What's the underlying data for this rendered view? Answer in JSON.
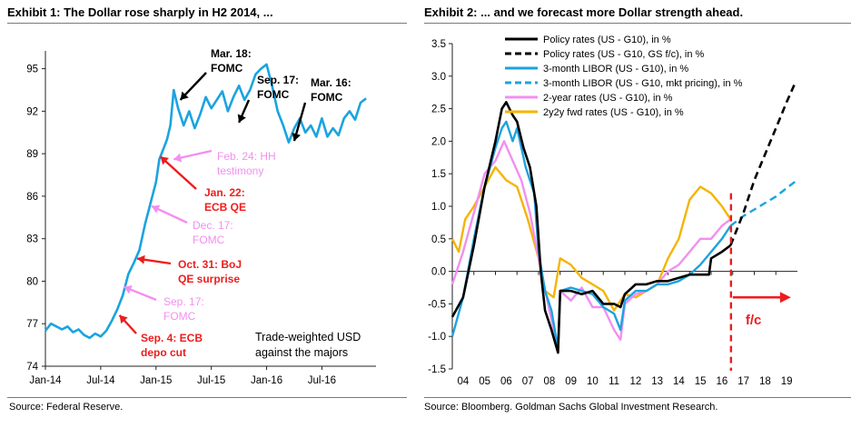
{
  "chart_data": [
    {
      "id": "exhibit1",
      "type": "line",
      "title": "Exhibit 1: The Dollar rose sharply in H2 2014, ...",
      "source": "Source: Federal Reserve.",
      "series_label": [
        "Trade-weighted USD",
        "against the majors"
      ],
      "series_color": "#1ba3e0",
      "ylim": [
        74,
        96
      ],
      "yticks": [
        74,
        77,
        80,
        83,
        86,
        89,
        92,
        95
      ],
      "x_range": [
        2014.0,
        2016.94
      ],
      "xticks": [
        {
          "x": 2014.0,
          "label": "Jan-14"
        },
        {
          "x": 2014.5,
          "label": "Jul-14"
        },
        {
          "x": 2015.0,
          "label": "Jan-15"
        },
        {
          "x": 2015.5,
          "label": "Jul-15"
        },
        {
          "x": 2016.0,
          "label": "Jan-16"
        },
        {
          "x": 2016.5,
          "label": "Jul-16"
        }
      ],
      "x": [
        2014.0,
        2014.05,
        2014.1,
        2014.15,
        2014.2,
        2014.25,
        2014.3,
        2014.35,
        2014.4,
        2014.45,
        2014.5,
        2014.55,
        2014.6,
        2014.65,
        2014.7,
        2014.75,
        2014.8,
        2014.85,
        2014.9,
        2014.95,
        2015.0,
        2015.03,
        2015.06,
        2015.1,
        2015.13,
        2015.16,
        2015.2,
        2015.25,
        2015.3,
        2015.35,
        2015.4,
        2015.45,
        2015.5,
        2015.55,
        2015.6,
        2015.65,
        2015.7,
        2015.75,
        2015.8,
        2015.85,
        2015.9,
        2015.95,
        2016.0,
        2016.05,
        2016.1,
        2016.15,
        2016.2,
        2016.25,
        2016.3,
        2016.35,
        2016.4,
        2016.45,
        2016.5,
        2016.55,
        2016.6,
        2016.65,
        2016.7,
        2016.75,
        2016.8,
        2016.85,
        2016.9
      ],
      "values": [
        76.5,
        77.0,
        76.8,
        76.6,
        76.8,
        76.4,
        76.6,
        76.2,
        76.0,
        76.3,
        76.1,
        76.5,
        77.2,
        78.0,
        79.0,
        80.5,
        81.3,
        82.2,
        84.0,
        85.5,
        87.0,
        88.6,
        89.2,
        90.0,
        91.0,
        93.5,
        92.2,
        91.0,
        92.0,
        90.8,
        91.8,
        93.0,
        92.2,
        92.8,
        93.4,
        92.0,
        93.0,
        93.8,
        92.8,
        93.5,
        94.6,
        95.0,
        95.3,
        93.8,
        92.0,
        91.0,
        89.8,
        90.8,
        91.5,
        90.5,
        91.0,
        90.2,
        91.5,
        90.2,
        90.8,
        90.3,
        91.5,
        92.0,
        91.4,
        92.6,
        92.9
      ],
      "annotations": [
        {
          "lines": [
            "Mar. 18:",
            "FOMC"
          ],
          "color": "#000000",
          "target": [
            2015.22,
            92.8
          ]
        },
        {
          "lines": [
            "Sep. 17:",
            "FOMC"
          ],
          "color": "#000000",
          "target": [
            2015.75,
            91.2
          ]
        },
        {
          "lines": [
            "Mar. 16:",
            "FOMC"
          ],
          "color": "#000000",
          "target": [
            2016.25,
            89.9
          ]
        },
        {
          "lines": [
            "Feb. 24: HH",
            "testimony"
          ],
          "color": "#f28ff0",
          "target": [
            2015.16,
            88.6
          ]
        },
        {
          "lines": [
            "Jan. 22:",
            "ECB QE"
          ],
          "color": "#ee1c1c",
          "target": [
            2015.04,
            88.8
          ]
        },
        {
          "lines": [
            "Dec. 17:",
            "FOMC"
          ],
          "color": "#f28ff0",
          "target": [
            2014.96,
            85.3
          ]
        },
        {
          "lines": [
            "Oct. 31: BoJ",
            "QE surprise"
          ],
          "color": "#ee1c1c",
          "target": [
            2014.83,
            81.6
          ]
        },
        {
          "lines": [
            "Sep. 17:",
            "FOMC"
          ],
          "color": "#f28ff0",
          "target": [
            2014.71,
            79.6
          ]
        },
        {
          "lines": [
            "Sep. 4: ECB",
            "depo cut"
          ],
          "color": "#ee1c1c",
          "target": [
            2014.67,
            77.6
          ]
        }
      ]
    },
    {
      "id": "exhibit2",
      "type": "line",
      "title": "Exhibit 2: ... and we forecast more Dollar strength ahead.",
      "source": "Source: Bloomberg. Goldman Sachs Global Investment Research.",
      "ylim": [
        -1.5,
        3.5
      ],
      "yticks": [
        -1.5,
        -1.0,
        -0.5,
        0.0,
        0.5,
        1.0,
        1.5,
        2.0,
        2.5,
        3.0,
        3.5
      ],
      "ytick_labels": [
        "-1.5",
        "-1.0",
        "-0.5",
        "0.0",
        "0.5",
        "1.0",
        "1.5",
        "2.0",
        "2.5",
        "3.0",
        "3.5"
      ],
      "x_range": [
        2004,
        2020
      ],
      "xticks": [
        {
          "x": 2004,
          "label": "04"
        },
        {
          "x": 2005,
          "label": "05"
        },
        {
          "x": 2006,
          "label": "06"
        },
        {
          "x": 2007,
          "label": "07"
        },
        {
          "x": 2008,
          "label": "08"
        },
        {
          "x": 2009,
          "label": "09"
        },
        {
          "x": 2010,
          "label": "10"
        },
        {
          "x": 2011,
          "label": "11"
        },
        {
          "x": 2012,
          "label": "12"
        },
        {
          "x": 2013,
          "label": "13"
        },
        {
          "x": 2014,
          "label": "14"
        },
        {
          "x": 2015,
          "label": "15"
        },
        {
          "x": 2016,
          "label": "16"
        },
        {
          "x": 2017,
          "label": "17"
        },
        {
          "x": 2018,
          "label": "18"
        },
        {
          "x": 2019,
          "label": "19"
        }
      ],
      "forecast_x": 2016.92,
      "forecast_label": "f/c",
      "series": [
        {
          "name": "Policy rates (US - G10), in %",
          "color": "#000000",
          "dash": false,
          "x": [
            2004.0,
            2004.5,
            2005.0,
            2005.5,
            2006.0,
            2006.3,
            2006.5,
            2006.8,
            2007.0,
            2007.3,
            2007.6,
            2007.9,
            2008.1,
            2008.3,
            2008.6,
            2008.9,
            2009.0,
            2009.5,
            2010.0,
            2010.5,
            2011.0,
            2011.5,
            2011.8,
            2012.0,
            2012.5,
            2013.0,
            2013.5,
            2014.0,
            2014.5,
            2015.0,
            2015.5,
            2015.9,
            2016.0,
            2016.5,
            2016.9
          ],
          "values": [
            -0.7,
            -0.4,
            0.4,
            1.3,
            2.0,
            2.5,
            2.6,
            2.4,
            2.3,
            1.9,
            1.6,
            1.0,
            0.0,
            -0.6,
            -0.9,
            -1.25,
            -0.3,
            -0.3,
            -0.35,
            -0.3,
            -0.5,
            -0.5,
            -0.55,
            -0.35,
            -0.2,
            -0.2,
            -0.15,
            -0.15,
            -0.1,
            -0.05,
            -0.05,
            -0.05,
            0.2,
            0.3,
            0.4
          ]
        },
        {
          "name": "Policy rates (US - G10, GS f/c), in %",
          "color": "#000000",
          "dash": true,
          "x": [
            2016.9,
            2017.5,
            2018.0,
            2018.5,
            2019.0,
            2019.5,
            2019.9
          ],
          "values": [
            0.4,
            0.9,
            1.4,
            1.8,
            2.2,
            2.6,
            2.9
          ]
        },
        {
          "name": "3-month LIBOR (US - G10), in %",
          "color": "#1ba3e0",
          "dash": false,
          "x": [
            2004.0,
            2004.5,
            2005.0,
            2005.5,
            2006.0,
            2006.3,
            2006.5,
            2006.8,
            2007.0,
            2007.4,
            2007.8,
            2008.0,
            2008.3,
            2008.6,
            2008.9,
            2009.0,
            2009.5,
            2010.0,
            2010.5,
            2011.0,
            2011.5,
            2011.8,
            2012.0,
            2012.5,
            2013.0,
            2013.5,
            2014.0,
            2014.5,
            2015.0,
            2015.5,
            2016.0,
            2016.5,
            2016.9
          ],
          "values": [
            -1.0,
            -0.4,
            0.5,
            1.3,
            1.9,
            2.2,
            2.3,
            2.0,
            2.2,
            1.6,
            1.2,
            0.3,
            -0.3,
            -0.6,
            -1.2,
            -0.3,
            -0.25,
            -0.3,
            -0.35,
            -0.55,
            -0.65,
            -0.9,
            -0.45,
            -0.3,
            -0.3,
            -0.2,
            -0.2,
            -0.15,
            -0.05,
            0.1,
            0.3,
            0.5,
            0.7
          ]
        },
        {
          "name": "3-month LIBOR (US - G10, mkt pricing), in %",
          "color": "#1ba3e0",
          "dash": true,
          "x": [
            2016.9,
            2017.5,
            2018.0,
            2018.5,
            2019.0,
            2019.5,
            2019.9
          ],
          "values": [
            0.7,
            0.85,
            0.95,
            1.05,
            1.15,
            1.28,
            1.38
          ]
        },
        {
          "name": "2-year rates (US - G10), in %",
          "color": "#f28ff0",
          "dash": false,
          "x": [
            2004.0,
            2004.5,
            2005.0,
            2005.5,
            2006.0,
            2006.4,
            2006.8,
            2007.2,
            2007.6,
            2008.0,
            2008.5,
            2008.9,
            2009.0,
            2009.5,
            2010.0,
            2010.5,
            2011.0,
            2011.5,
            2011.8,
            2012.0,
            2012.5,
            2013.0,
            2013.5,
            2014.0,
            2014.5,
            2015.0,
            2015.5,
            2016.0,
            2016.5,
            2016.9
          ],
          "values": [
            -0.2,
            0.3,
            0.9,
            1.5,
            1.7,
            2.0,
            1.7,
            1.4,
            0.9,
            0.2,
            -0.6,
            -1.2,
            -0.3,
            -0.45,
            -0.25,
            -0.55,
            -0.55,
            -0.9,
            -1.05,
            -0.5,
            -0.35,
            -0.3,
            -0.2,
            0.0,
            0.1,
            0.3,
            0.5,
            0.5,
            0.7,
            0.8
          ]
        },
        {
          "name": "2y2y fwd rates (US - G10), in %",
          "color": "#f5b400",
          "dash": false,
          "x": [
            2004.0,
            2004.3,
            2004.6,
            2005.0,
            2005.5,
            2006.0,
            2006.5,
            2007.0,
            2007.5,
            2008.0,
            2008.3,
            2008.7,
            2009.0,
            2009.5,
            2010.0,
            2010.5,
            2011.0,
            2011.5,
            2012.0,
            2012.5,
            2013.0,
            2013.5,
            2014.0,
            2014.5,
            2015.0,
            2015.5,
            2016.0,
            2016.5,
            2016.9
          ],
          "values": [
            0.5,
            0.3,
            0.8,
            1.0,
            1.3,
            1.6,
            1.4,
            1.3,
            0.8,
            0.2,
            -0.3,
            -0.4,
            0.2,
            0.1,
            -0.1,
            -0.2,
            -0.3,
            -0.6,
            -0.35,
            -0.4,
            -0.3,
            -0.2,
            0.2,
            0.5,
            1.1,
            1.3,
            1.2,
            1.0,
            0.8
          ]
        }
      ]
    }
  ]
}
